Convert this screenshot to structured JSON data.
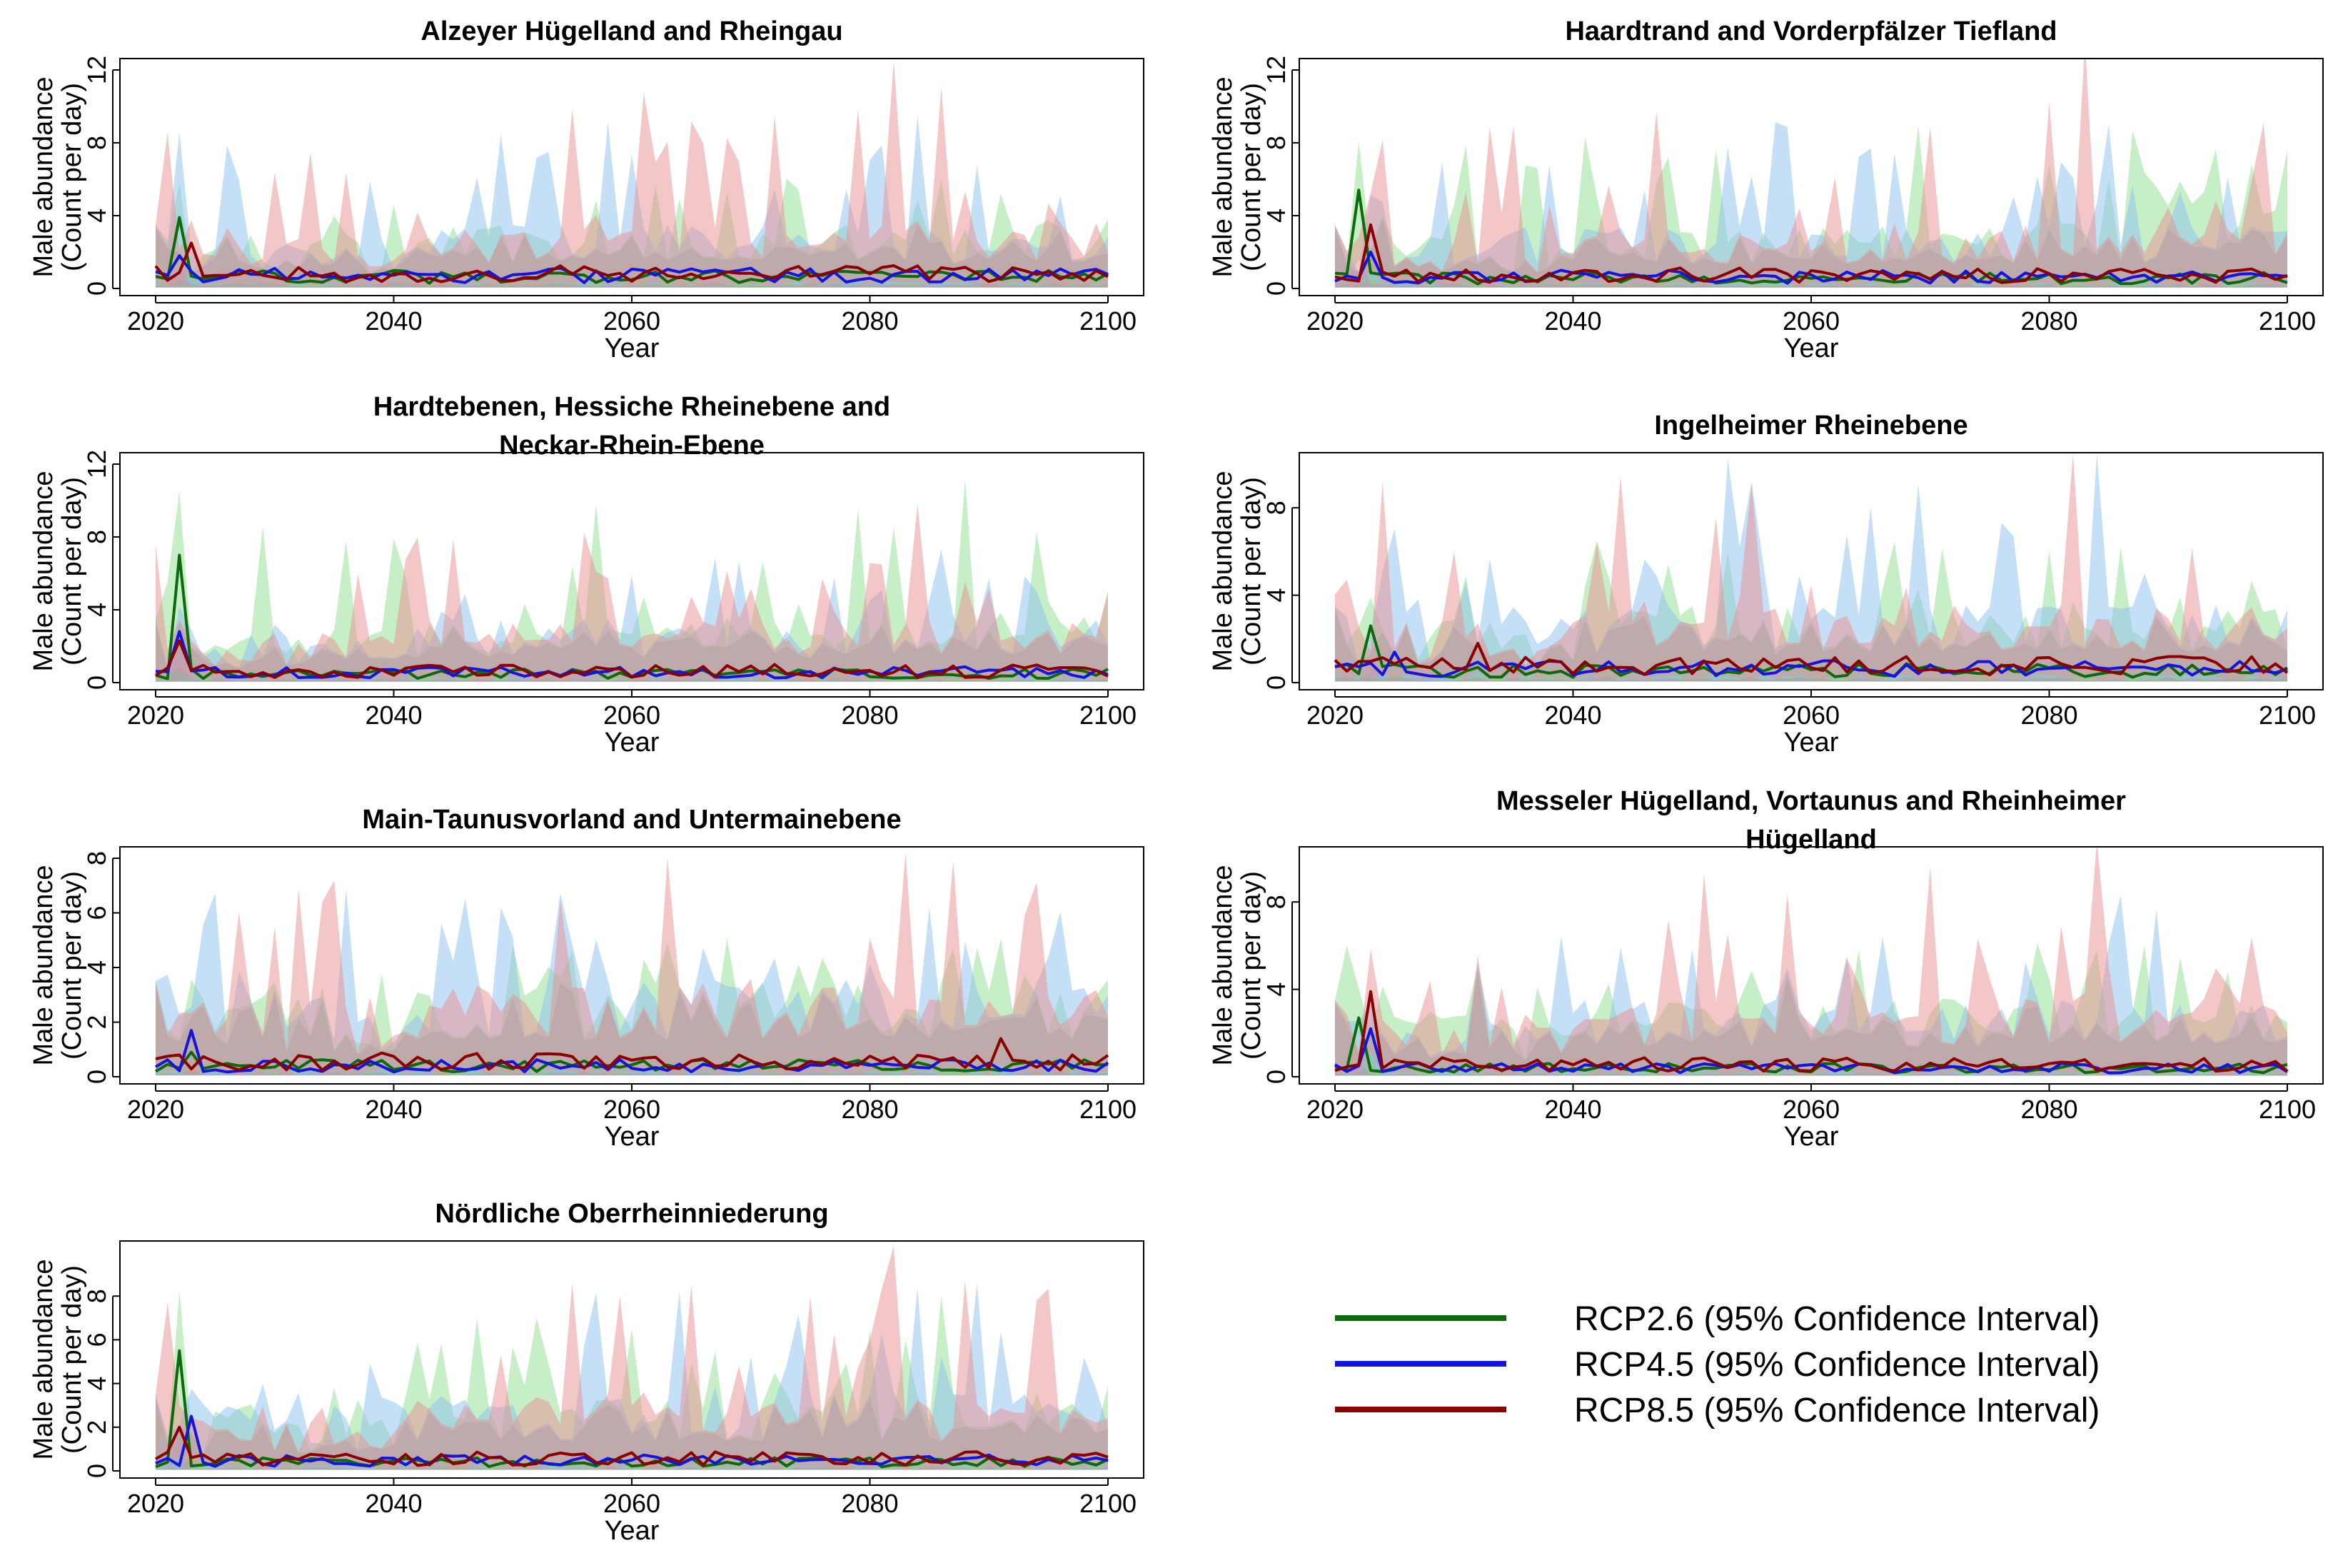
{
  "figure": {
    "x_axis_label": "Year",
    "y_axis_label_line1": "Male abundance",
    "y_axis_label_line2": "(Count per day)"
  },
  "legend": {
    "placement": "bottom-right",
    "entries": [
      {
        "label": "RCP2.6 (95% Confidence Interval)",
        "color": "#0b6b0b"
      },
      {
        "label": "RCP4.5 (95% Confidence Interval)",
        "color": "#1414e0"
      },
      {
        "label": "RCP8.5 (95% Confidence Interval)",
        "color": "#8b0000"
      }
    ]
  },
  "colors": {
    "rcp26_line": "#0b6b0b",
    "rcp45_line": "#1414e0",
    "rcp85_line": "#8b0000",
    "rcp26_band": "#90e090",
    "rcp45_band": "#8cc0f0",
    "rcp85_band": "#e89090",
    "overlap_band": "#8c8c8c"
  },
  "chart_data": [
    {
      "type": "area",
      "title_lines": [
        "Alzeyer Hügelland and Rheingau"
      ],
      "xlim": [
        2020,
        2100
      ],
      "ylim": [
        0,
        12
      ],
      "x_ticks": [
        2020,
        2040,
        2060,
        2080,
        2100
      ],
      "y_ticks": [
        0,
        4,
        8,
        12
      ],
      "grid": false,
      "series": [
        {
          "name": "RCP2.6",
          "spike": {
            "year": 2022,
            "value": 3.9
          },
          "mean_level": 0.8,
          "band_peak": 6.0
        },
        {
          "name": "RCP4.5",
          "spike": {
            "year": 2022,
            "value": 1.8
          },
          "mean_level": 0.9,
          "band_peak": 9.5
        },
        {
          "name": "RCP8.5",
          "spike": {
            "year": 2023,
            "value": 2.5
          },
          "mean_level": 1.0,
          "band_peak": 12.5
        }
      ]
    },
    {
      "type": "area",
      "title_lines": [
        "Haardtrand and Vorderpfälzer Tiefland"
      ],
      "xlim": [
        2020,
        2100
      ],
      "ylim": [
        0,
        12
      ],
      "x_ticks": [
        2020,
        2040,
        2060,
        2080,
        2100
      ],
      "y_ticks": [
        0,
        4,
        8,
        12
      ],
      "grid": false,
      "series": [
        {
          "name": "RCP2.6",
          "spike": {
            "year": 2022,
            "value": 5.4
          },
          "mean_level": 0.7,
          "band_peak": 8.7
        },
        {
          "name": "RCP4.5",
          "spike": {
            "year": 2023,
            "value": 2.0
          },
          "mean_level": 0.8,
          "band_peak": 9.0
        },
        {
          "name": "RCP8.5",
          "spike": {
            "year": 2023,
            "value": 3.5
          },
          "mean_level": 0.9,
          "band_peak": 13.5
        }
      ]
    },
    {
      "type": "area",
      "title_lines": [
        "Hardtebenen, Hessiche Rheinebene and",
        "Neckar-Rhein-Ebene"
      ],
      "xlim": [
        2020,
        2100
      ],
      "ylim": [
        0,
        12
      ],
      "x_ticks": [
        2020,
        2040,
        2060,
        2080,
        2100
      ],
      "y_ticks": [
        0,
        4,
        8,
        12
      ],
      "grid": false,
      "series": [
        {
          "name": "RCP2.6",
          "spike": {
            "year": 2022,
            "value": 7.0
          },
          "mean_level": 0.6,
          "band_peak": 11.2
        },
        {
          "name": "RCP4.5",
          "spike": {
            "year": 2022,
            "value": 2.8
          },
          "mean_level": 0.7,
          "band_peak": 7.3
        },
        {
          "name": "RCP8.5",
          "spike": {
            "year": 2022,
            "value": 2.3
          },
          "mean_level": 0.8,
          "band_peak": 9.8
        }
      ]
    },
    {
      "type": "area",
      "title_lines": [
        "Ingelheimer Rheinebene"
      ],
      "xlim": [
        2020,
        2100
      ],
      "ylim": [
        0,
        10
      ],
      "x_ticks": [
        2020,
        2040,
        2060,
        2080,
        2100
      ],
      "y_ticks": [
        0,
        4,
        8
      ],
      "grid": false,
      "series": [
        {
          "name": "RCP2.6",
          "spike": {
            "year": 2023,
            "value": 2.6
          },
          "mean_level": 0.7,
          "band_peak": 6.2
        },
        {
          "name": "RCP4.5",
          "spike": {
            "year": 2025,
            "value": 1.4
          },
          "mean_level": 0.8,
          "band_peak": 10.5
        },
        {
          "name": "RCP8.5",
          "spike": {
            "year": 2032,
            "value": 1.8
          },
          "mean_level": 1.0,
          "band_peak": 10.5
        }
      ]
    },
    {
      "type": "area",
      "title_lines": [
        "Main-Taunusvorland and Untermainebene"
      ],
      "xlim": [
        2020,
        2100
      ],
      "ylim": [
        0,
        8
      ],
      "x_ticks": [
        2020,
        2040,
        2060,
        2080,
        2100
      ],
      "y_ticks": [
        0,
        2,
        4,
        6,
        8
      ],
      "grid": false,
      "series": [
        {
          "name": "RCP2.6",
          "spike": {
            "year": 2023,
            "value": 0.9
          },
          "mean_level": 0.5,
          "band_peak": 4.7
        },
        {
          "name": "RCP4.5",
          "spike": {
            "year": 2023,
            "value": 1.7
          },
          "mean_level": 0.5,
          "band_peak": 6.2
        },
        {
          "name": "RCP8.5",
          "spike": {
            "year": 2091,
            "value": 1.4
          },
          "mean_level": 0.7,
          "band_peak": 8.2
        }
      ]
    },
    {
      "type": "area",
      "title_lines": [
        "Messeler Hügelland, Vortaunus and Rheinheimer",
        "Hügelland"
      ],
      "xlim": [
        2020,
        2100
      ],
      "ylim": [
        0,
        10
      ],
      "x_ticks": [
        2020,
        2040,
        2060,
        2080,
        2100
      ],
      "y_ticks": [
        0,
        4,
        8
      ],
      "grid": false,
      "series": [
        {
          "name": "RCP2.6",
          "spike": {
            "year": 2022,
            "value": 2.7
          },
          "mean_level": 0.5,
          "band_peak": 6.0
        },
        {
          "name": "RCP4.5",
          "spike": {
            "year": 2023,
            "value": 2.2
          },
          "mean_level": 0.5,
          "band_peak": 8.3
        },
        {
          "name": "RCP8.5",
          "spike": {
            "year": 2023,
            "value": 3.9
          },
          "mean_level": 0.7,
          "band_peak": 10.8
        }
      ]
    },
    {
      "type": "area",
      "title_lines": [
        "Nördliche Oberrheinniederung"
      ],
      "xlim": [
        2020,
        2100
      ],
      "ylim": [
        0,
        10
      ],
      "x_ticks": [
        2020,
        2040,
        2060,
        2080,
        2100
      ],
      "y_ticks": [
        0,
        2,
        4,
        6,
        8
      ],
      "grid": false,
      "series": [
        {
          "name": "RCP2.6",
          "spike": {
            "year": 2022,
            "value": 5.5
          },
          "mean_level": 0.5,
          "band_peak": 8.0
        },
        {
          "name": "RCP4.5",
          "spike": {
            "year": 2023,
            "value": 2.5
          },
          "mean_level": 0.6,
          "band_peak": 8.4
        },
        {
          "name": "RCP8.5",
          "spike": {
            "year": 2022,
            "value": 2.0
          },
          "mean_level": 0.7,
          "band_peak": 10.3
        }
      ]
    }
  ]
}
